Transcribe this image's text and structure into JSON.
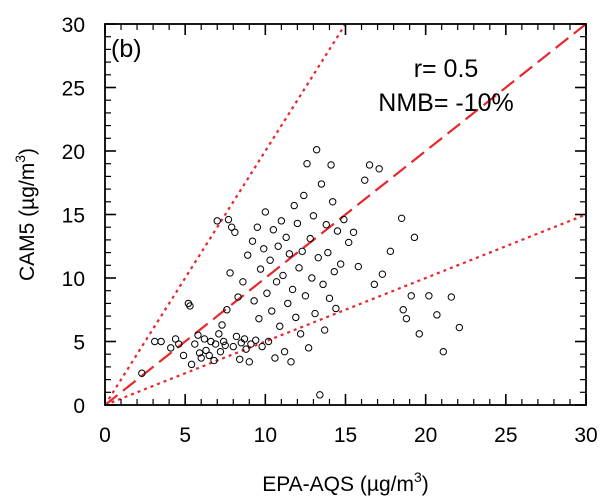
{
  "chart_data": {
    "type": "scatter",
    "panel_label": "(b)",
    "xlabel_prefix": "EPA-AQS (µg/m",
    "xlabel_sup": "3",
    "xlabel_suffix": ")",
    "ylabel_prefix": "CAM5 (µg/m",
    "ylabel_sup": "3",
    "ylabel_suffix": ")",
    "annotations": [
      "r= 0.5",
      "NMB= -10%"
    ],
    "xlim": [
      0,
      30
    ],
    "ylim": [
      0,
      30
    ],
    "xticks": [
      0,
      5,
      10,
      15,
      20,
      25,
      30
    ],
    "yticks": [
      0,
      5,
      10,
      15,
      20,
      25,
      30
    ],
    "grid": false,
    "reference_lines": [
      {
        "style": "dashed",
        "slope": 1
      },
      {
        "style": "dotted",
        "slope": 2
      },
      {
        "style": "dotted",
        "slope": 0.5
      }
    ],
    "marker": "open-circle",
    "colors": {
      "points": "#000000",
      "lines": "#e8262b"
    },
    "points": [
      [
        2.3,
        2.5
      ],
      [
        3.1,
        5.0
      ],
      [
        3.5,
        5.0
      ],
      [
        4.1,
        4.5
      ],
      [
        4.4,
        5.2
      ],
      [
        4.6,
        4.8
      ],
      [
        4.9,
        3.9
      ],
      [
        5.2,
        8.0
      ],
      [
        5.3,
        7.8
      ],
      [
        5.4,
        3.2
      ],
      [
        5.6,
        4.8
      ],
      [
        5.8,
        5.5
      ],
      [
        5.9,
        4.1
      ],
      [
        6.0,
        3.7
      ],
      [
        6.2,
        5.2
      ],
      [
        6.3,
        4.3
      ],
      [
        6.5,
        3.9
      ],
      [
        6.6,
        5.0
      ],
      [
        6.8,
        3.5
      ],
      [
        6.9,
        4.8
      ],
      [
        7.0,
        14.5
      ],
      [
        7.1,
        5.6
      ],
      [
        7.2,
        4.2
      ],
      [
        7.3,
        6.3
      ],
      [
        7.4,
        5.0
      ],
      [
        7.5,
        4.7
      ],
      [
        7.6,
        7.5
      ],
      [
        7.7,
        14.6
      ],
      [
        7.8,
        10.4
      ],
      [
        7.9,
        14.0
      ],
      [
        8.0,
        4.6
      ],
      [
        8.1,
        13.6
      ],
      [
        8.2,
        5.4
      ],
      [
        8.3,
        8.5
      ],
      [
        8.4,
        3.6
      ],
      [
        8.5,
        4.9
      ],
      [
        8.6,
        9.7
      ],
      [
        8.7,
        5.2
      ],
      [
        8.8,
        4.4
      ],
      [
        8.9,
        11.8
      ],
      [
        9.0,
        3.4
      ],
      [
        9.1,
        4.8
      ],
      [
        9.2,
        12.9
      ],
      [
        9.3,
        8.2
      ],
      [
        9.4,
        5.1
      ],
      [
        9.5,
        14.0
      ],
      [
        9.6,
        6.8
      ],
      [
        9.7,
        10.7
      ],
      [
        9.8,
        4.6
      ],
      [
        9.9,
        12.3
      ],
      [
        10.0,
        15.2
      ],
      [
        10.1,
        8.8
      ],
      [
        10.2,
        5.0
      ],
      [
        10.3,
        11.4
      ],
      [
        10.4,
        7.4
      ],
      [
        10.5,
        13.8
      ],
      [
        10.6,
        3.7
      ],
      [
        10.7,
        9.7
      ],
      [
        10.8,
        12.5
      ],
      [
        10.9,
        6.2
      ],
      [
        11.0,
        14.5
      ],
      [
        11.1,
        10.2
      ],
      [
        11.2,
        4.2
      ],
      [
        11.3,
        13.2
      ],
      [
        11.4,
        8.0
      ],
      [
        11.5,
        11.9
      ],
      [
        11.6,
        3.4
      ],
      [
        11.7,
        9.1
      ],
      [
        11.8,
        15.7
      ],
      [
        11.9,
        6.9
      ],
      [
        12.0,
        14.3
      ],
      [
        12.1,
        10.8
      ],
      [
        12.2,
        5.6
      ],
      [
        12.3,
        12.1
      ],
      [
        12.4,
        16.5
      ],
      [
        12.5,
        8.6
      ],
      [
        12.6,
        19.0
      ],
      [
        12.7,
        4.5
      ],
      [
        12.8,
        13.1
      ],
      [
        12.9,
        10.0
      ],
      [
        13.0,
        14.9
      ],
      [
        13.1,
        7.2
      ],
      [
        13.2,
        20.1
      ],
      [
        13.3,
        11.6
      ],
      [
        13.4,
        0.8
      ],
      [
        13.5,
        17.4
      ],
      [
        13.6,
        9.5
      ],
      [
        13.7,
        5.9
      ],
      [
        13.8,
        14.2
      ],
      [
        13.9,
        12.0
      ],
      [
        14.0,
        8.4
      ],
      [
        14.1,
        18.9
      ],
      [
        14.2,
        16.0
      ],
      [
        14.3,
        10.5
      ],
      [
        14.4,
        7.6
      ],
      [
        14.5,
        13.7
      ],
      [
        14.7,
        11.1
      ],
      [
        14.9,
        14.6
      ],
      [
        15.2,
        12.8
      ],
      [
        15.5,
        13.6
      ],
      [
        15.8,
        10.9
      ],
      [
        16.2,
        17.7
      ],
      [
        16.5,
        18.9
      ],
      [
        16.8,
        9.5
      ],
      [
        17.1,
        18.6
      ],
      [
        17.3,
        10.3
      ],
      [
        17.8,
        12.1
      ],
      [
        18.5,
        14.7
      ],
      [
        18.6,
        7.5
      ],
      [
        18.8,
        6.8
      ],
      [
        19.1,
        8.6
      ],
      [
        19.3,
        13.2
      ],
      [
        19.6,
        5.6
      ],
      [
        20.2,
        8.6
      ],
      [
        20.7,
        7.1
      ],
      [
        21.1,
        4.2
      ],
      [
        21.6,
        8.5
      ],
      [
        22.1,
        6.1
      ]
    ]
  }
}
